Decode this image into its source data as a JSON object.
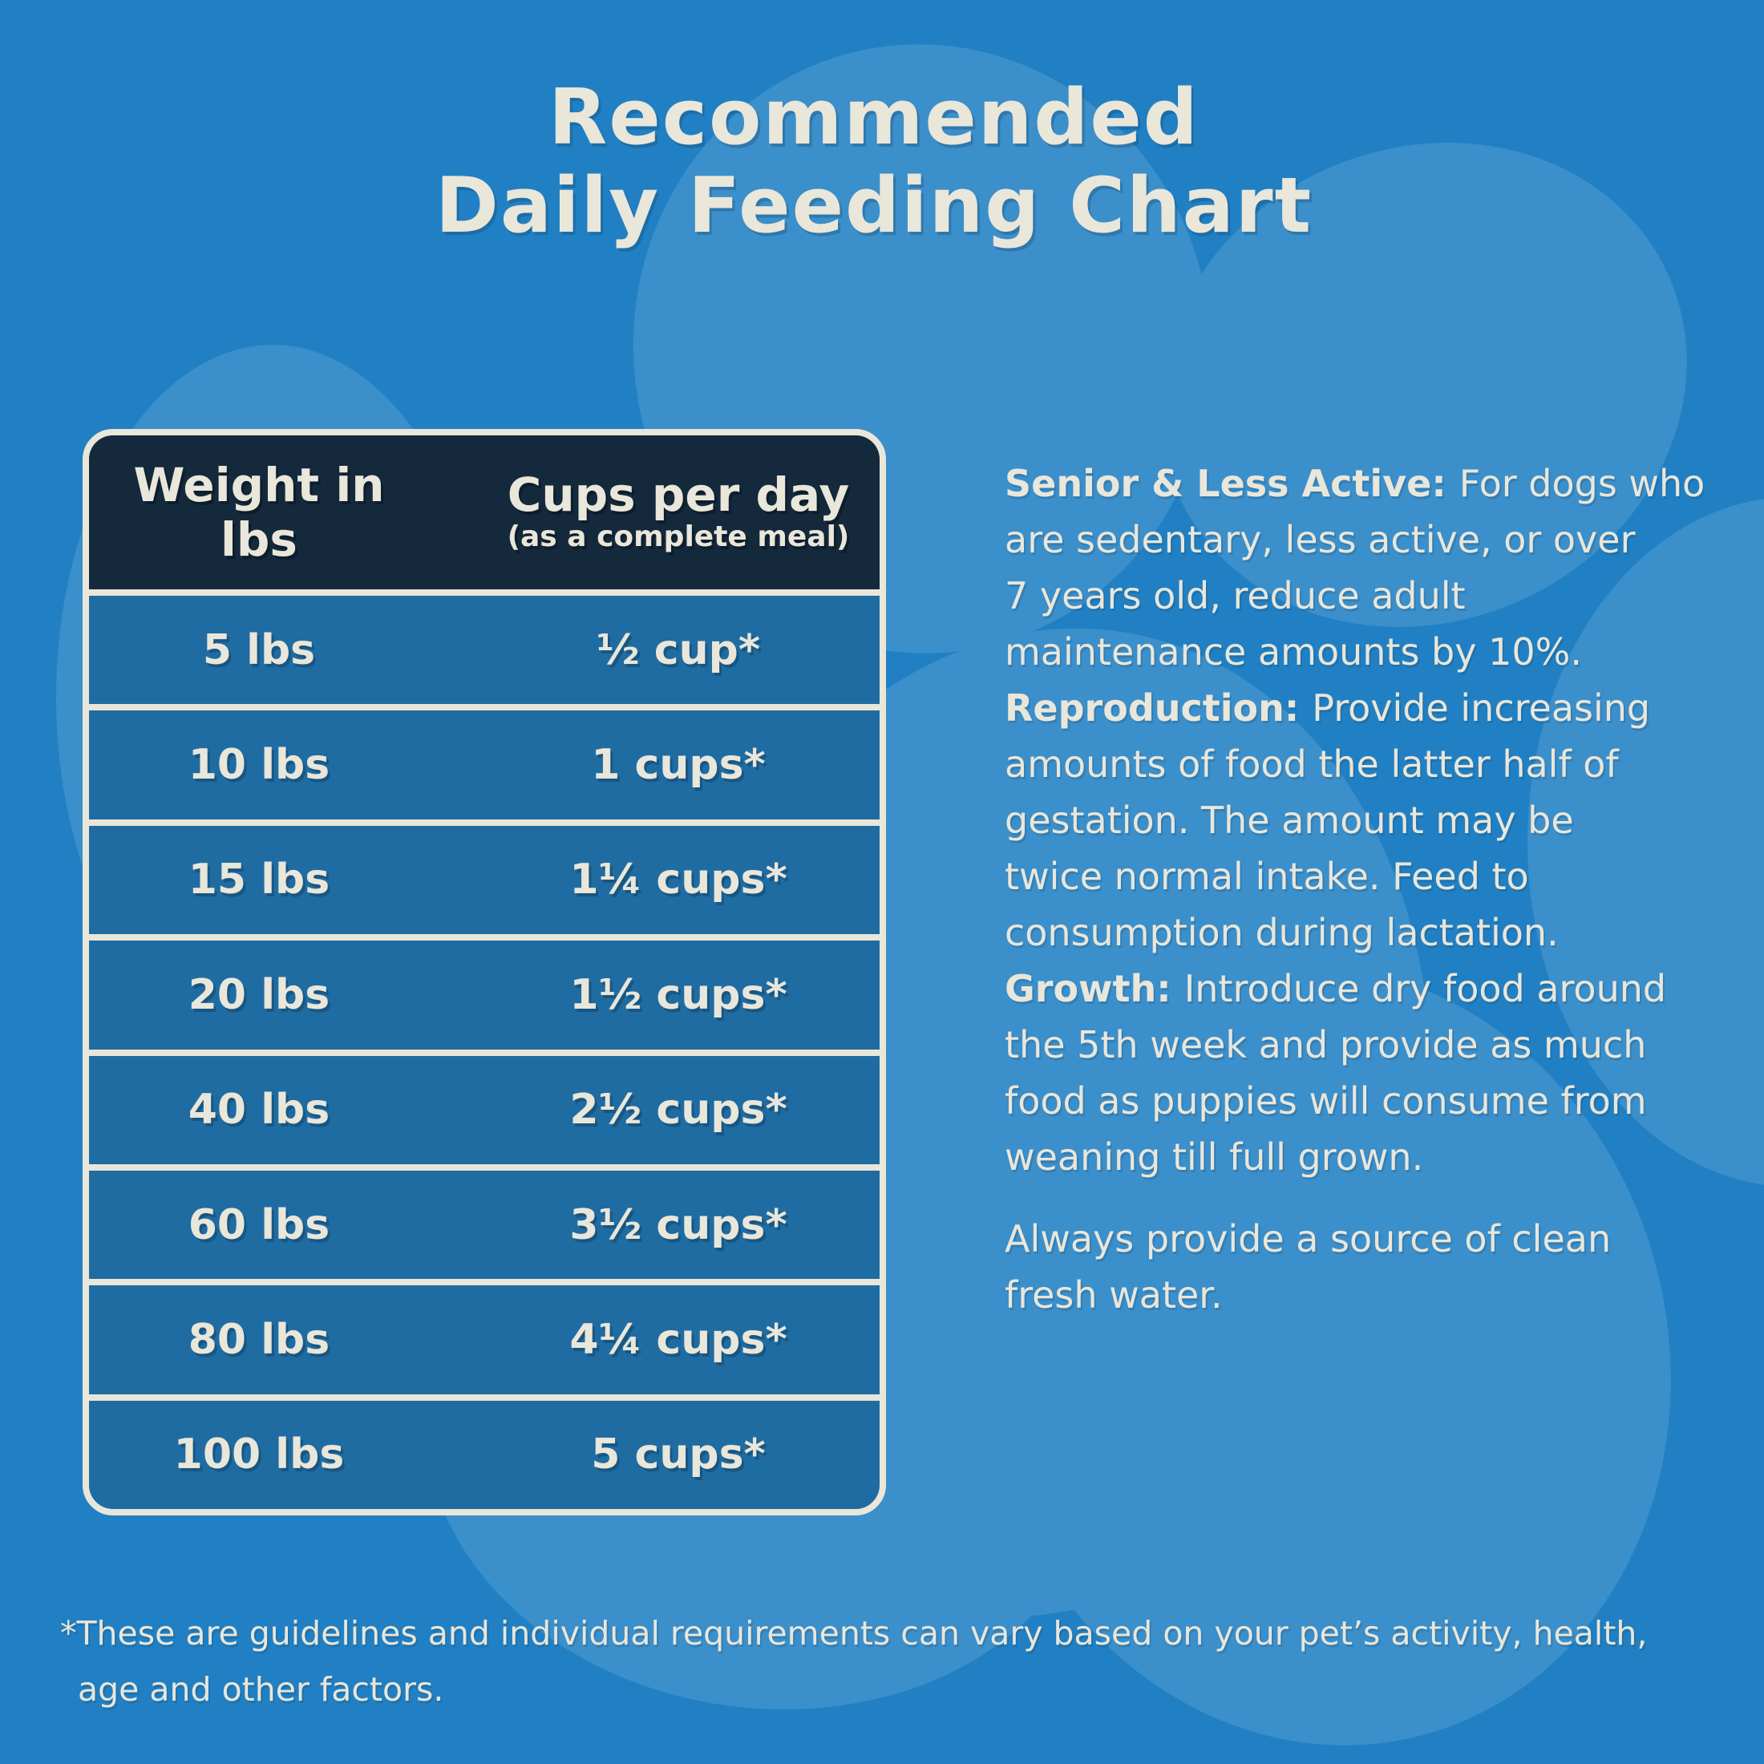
{
  "colors": {
    "background": "#2180c3",
    "paw": "#3b8fca",
    "cream": "#e9e6da",
    "header_bg": "#15293d",
    "row_bg": "#1f6ca2"
  },
  "title": {
    "line1": "Recommended",
    "line2": "Daily Feeding Chart"
  },
  "table": {
    "header": {
      "weight_label": "Weight in lbs",
      "cups_label": "Cups per day",
      "cups_sublabel": "(as a complete meal)"
    },
    "rows": [
      {
        "weight": "5 lbs",
        "cups": "½ cup*"
      },
      {
        "weight": "10 lbs",
        "cups": "1 cups*"
      },
      {
        "weight": "15 lbs",
        "cups": "1¼ cups*"
      },
      {
        "weight": "20 lbs",
        "cups": "1½ cups*"
      },
      {
        "weight": "40 lbs",
        "cups": "2½ cups*"
      },
      {
        "weight": "60 lbs",
        "cups": "3½ cups*"
      },
      {
        "weight": "80 lbs",
        "cups": "4¼ cups*"
      },
      {
        "weight": "100 lbs",
        "cups": "5 cups*"
      }
    ]
  },
  "info": {
    "paragraphs": [
      {
        "label": "Senior & Less Active:",
        "lines": [
          "For dogs who",
          "are sedentary, less active, or over",
          "7 years old, reduce adult",
          "maintenance amounts by 10%."
        ],
        "gap_before": false
      },
      {
        "label": "Reproduction:",
        "lines": [
          "Provide increasing",
          "amounts of food the latter half of",
          "gestation. The amount may be",
          "twice normal intake. Feed to",
          "consumption during lactation."
        ],
        "gap_before": false
      },
      {
        "label": "Growth:",
        "lines": [
          "Introduce dry food around",
          "the 5th week and provide as much",
          "food as puppies will consume from",
          "weaning till full grown."
        ],
        "gap_before": false
      },
      {
        "label": "",
        "lines": [
          "Always provide a source of clean",
          "fresh water."
        ],
        "gap_before": true
      }
    ]
  },
  "footer": {
    "lines": [
      "*These are guidelines and individual requirements can vary based on your pet’s activity, health,",
      "age and other factors."
    ]
  }
}
